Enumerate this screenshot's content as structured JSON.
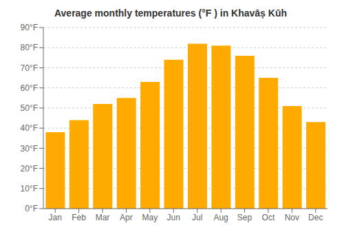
{
  "chart_data": {
    "type": "bar",
    "title": "Average monthly temperatures (°F ) in Khavāṣ Kūh",
    "categories": [
      "Jan",
      "Feb",
      "Mar",
      "Apr",
      "May",
      "Jun",
      "Jul",
      "Aug",
      "Sep",
      "Oct",
      "Nov",
      "Dec"
    ],
    "values": [
      38,
      44,
      52,
      55,
      63,
      74,
      82,
      81,
      76,
      65,
      51,
      43
    ],
    "color": "#FFAA00",
    "ylim": [
      0,
      90
    ],
    "yticks": [
      {
        "value": 0,
        "label": "0°F"
      },
      {
        "value": 10,
        "label": "10°F"
      },
      {
        "value": 20,
        "label": "20°F"
      },
      {
        "value": 30,
        "label": "30°F"
      },
      {
        "value": 40,
        "label": "40°F"
      },
      {
        "value": 50,
        "label": "50°F"
      },
      {
        "value": 60,
        "label": "60°F"
      },
      {
        "value": 70,
        "label": "70°F"
      },
      {
        "value": 80,
        "label": "80°F"
      },
      {
        "value": 90,
        "label": "90°F"
      }
    ],
    "grid": true
  }
}
